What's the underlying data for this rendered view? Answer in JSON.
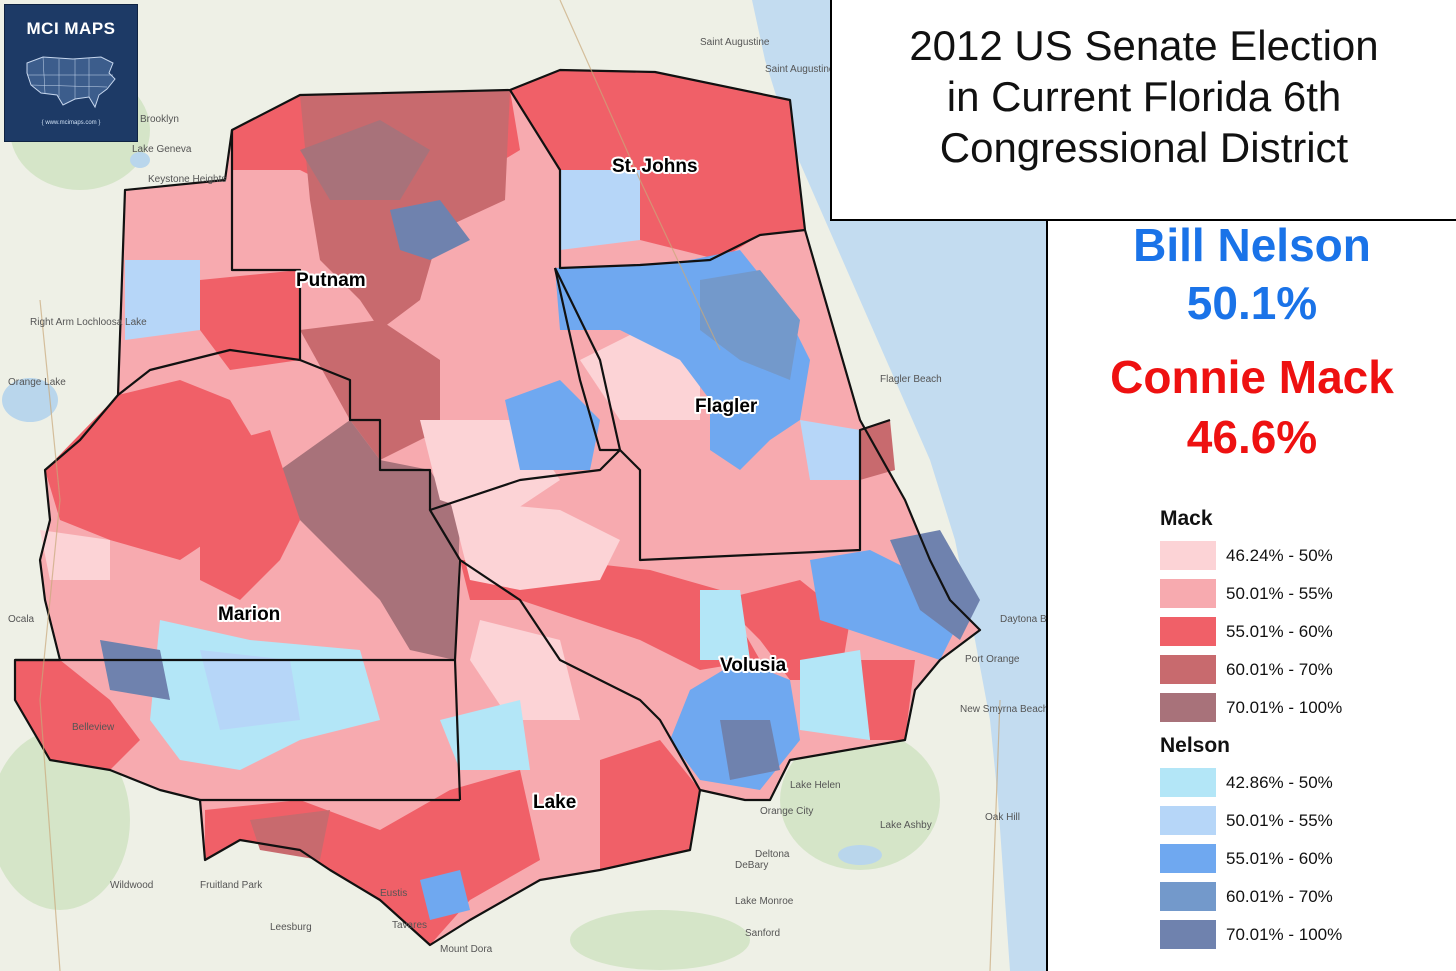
{
  "logo": {
    "title": "MCI MAPS",
    "url": "{ www.mcimaps.com }"
  },
  "title": {
    "line1": "2012 US Senate Election",
    "line2": "in Current Florida 6th",
    "line3": "Congressional District"
  },
  "candidates": {
    "dem": {
      "name": "Bill Nelson",
      "pct": "50.1%",
      "color": "#1a73e8"
    },
    "rep": {
      "name": "Connie Mack",
      "pct": "46.6%",
      "color": "#ee1111"
    }
  },
  "legend": {
    "mack": {
      "heading": "Mack",
      "items": [
        {
          "label": "46.24% - 50%",
          "color": "#fcd3d6"
        },
        {
          "label": "50.01% - 55%",
          "color": "#f7aaaf"
        },
        {
          "label": "55.01% - 60%",
          "color": "#f06068"
        },
        {
          "label": "60.01% - 70%",
          "color": "#c86a6e"
        },
        {
          "label": "70.01% - 100%",
          "color": "#a8727a"
        }
      ]
    },
    "nelson": {
      "heading": "Nelson",
      "items": [
        {
          "label": "42.86% - 50%",
          "color": "#b3e6f7"
        },
        {
          "label": "50.01% - 55%",
          "color": "#b6d6f8"
        },
        {
          "label": "55.01% - 60%",
          "color": "#6fa8f0"
        },
        {
          "label": "60.01% - 70%",
          "color": "#7399cb"
        },
        {
          "label": "70.01% - 100%",
          "color": "#6f82ae"
        }
      ]
    }
  },
  "counties": [
    "St. Johns",
    "Putnam",
    "Flagler",
    "Marion",
    "Volusia",
    "Lake"
  ],
  "places": [
    "Brooklyn",
    "Lake Geneva",
    "Keystone Heights",
    "Right Arm Lochloosa Lake",
    "Orange Lake",
    "Ocala",
    "Belleview",
    "Wildwood",
    "Fruitland Park",
    "Leesburg",
    "Tavares",
    "Eustis",
    "Mount Dora",
    "Sanford",
    "Lake Monroe",
    "Deltona",
    "DeBary",
    "Orange City",
    "Lake Helen",
    "Port Orange",
    "Daytona Beach Shores",
    "New Smyrna Beach",
    "Flagler Beach",
    "Saint Augustine Beach",
    "Saint Augustine",
    "Lake Ashby",
    "Oak Hill"
  ]
}
